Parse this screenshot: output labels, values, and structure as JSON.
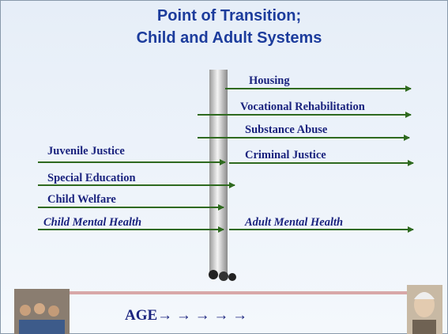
{
  "title": [
    "Point of Transition;",
    "Child and Adult Systems"
  ],
  "adult_systems": [
    "Housing",
    "Vocational Rehabilitation",
    "Substance Abuse",
    "Criminal Justice",
    "Adult Mental Health"
  ],
  "child_systems": [
    "Juvenile Justice",
    "Special Education",
    "Child Welfare",
    "Child Mental Health"
  ],
  "age_label": "AGE→ → → → →"
}
